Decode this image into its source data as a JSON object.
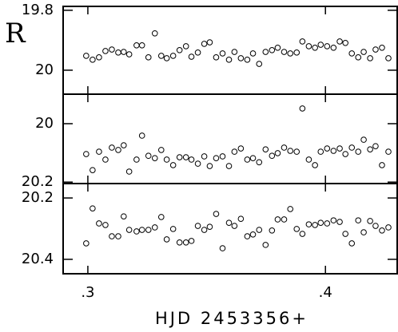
{
  "chart_data": [
    {
      "type": "scatter",
      "y_label": "R",
      "x": [
        0.2993,
        0.302,
        0.3047,
        0.3074,
        0.3101,
        0.3128,
        0.3151,
        0.3174,
        0.3205,
        0.3228,
        0.3255,
        0.3282,
        0.3309,
        0.3332,
        0.3359,
        0.3386,
        0.3413,
        0.3436,
        0.3463,
        0.349,
        0.3513,
        0.354,
        0.3567,
        0.3594,
        0.3617,
        0.3644,
        0.3671,
        0.3695,
        0.3721,
        0.3748,
        0.3775,
        0.3799,
        0.3826,
        0.3852,
        0.3879,
        0.3903,
        0.393,
        0.3956,
        0.398,
        0.4007,
        0.4034,
        0.406,
        0.4084,
        0.4111,
        0.4138,
        0.4161,
        0.4188,
        0.4211,
        0.4238,
        0.4265
      ],
      "values": [
        19.952,
        19.965,
        19.957,
        19.936,
        19.931,
        19.941,
        19.939,
        19.947,
        19.917,
        19.917,
        19.957,
        19.877,
        19.952,
        19.96,
        19.952,
        19.933,
        19.92,
        19.955,
        19.941,
        19.912,
        19.907,
        19.957,
        19.944,
        19.965,
        19.939,
        19.96,
        19.965,
        19.944,
        19.979,
        19.939,
        19.933,
        19.925,
        19.939,
        19.944,
        19.941,
        19.904,
        19.92,
        19.925,
        19.915,
        19.92,
        19.925,
        19.904,
        19.909,
        19.944,
        19.957,
        19.939,
        19.96,
        19.931,
        19.925,
        19.96
      ],
      "xlim": [
        0.2896,
        0.4302
      ],
      "ylim": [
        20.08,
        19.787
      ],
      "yticks": [
        19.8,
        20
      ]
    },
    {
      "type": "scatter",
      "x": [
        0.2993,
        0.302,
        0.3047,
        0.3074,
        0.3101,
        0.3128,
        0.3151,
        0.3174,
        0.3205,
        0.3228,
        0.3255,
        0.3282,
        0.3309,
        0.3332,
        0.3359,
        0.3386,
        0.3413,
        0.3436,
        0.3463,
        0.349,
        0.3513,
        0.354,
        0.3567,
        0.3594,
        0.3617,
        0.3644,
        0.3671,
        0.3695,
        0.3721,
        0.3748,
        0.3775,
        0.3799,
        0.3826,
        0.3852,
        0.3879,
        0.3903,
        0.393,
        0.3956,
        0.398,
        0.4007,
        0.4034,
        0.406,
        0.4084,
        0.4111,
        0.4138,
        0.4161,
        0.4188,
        0.4211,
        0.4238,
        0.4265
      ],
      "values": [
        20.104,
        20.159,
        20.096,
        20.123,
        20.082,
        20.09,
        20.074,
        20.164,
        20.123,
        20.041,
        20.11,
        20.118,
        20.09,
        20.123,
        20.142,
        20.115,
        20.115,
        20.123,
        20.137,
        20.112,
        20.145,
        20.118,
        20.112,
        20.145,
        20.096,
        20.085,
        20.123,
        20.118,
        20.132,
        20.088,
        20.11,
        20.101,
        20.082,
        20.093,
        20.096,
        19.948,
        20.123,
        20.142,
        20.096,
        20.085,
        20.093,
        20.085,
        20.104,
        20.082,
        20.096,
        20.055,
        20.088,
        20.077,
        20.142,
        20.096
      ],
      "xlim": [
        0.2896,
        0.4302
      ],
      "ylim": [
        20.205,
        19.899
      ],
      "yticks": [
        20,
        20.2
      ]
    },
    {
      "type": "scatter",
      "x_label": "HJD 2453356+",
      "x": [
        0.2993,
        0.302,
        0.3047,
        0.3074,
        0.3101,
        0.3128,
        0.3151,
        0.3174,
        0.3205,
        0.3228,
        0.3255,
        0.3282,
        0.3309,
        0.3332,
        0.3359,
        0.3386,
        0.3413,
        0.3436,
        0.3463,
        0.349,
        0.3513,
        0.354,
        0.3567,
        0.3594,
        0.3617,
        0.3644,
        0.3671,
        0.3695,
        0.3721,
        0.3748,
        0.3775,
        0.3799,
        0.3826,
        0.3852,
        0.3879,
        0.3903,
        0.393,
        0.3956,
        0.398,
        0.4007,
        0.4034,
        0.406,
        0.4084,
        0.4111,
        0.4138,
        0.4161,
        0.4188,
        0.4211,
        0.4238,
        0.4265
      ],
      "values": [
        20.348,
        20.234,
        20.283,
        20.288,
        20.325,
        20.325,
        20.26,
        20.304,
        20.309,
        20.304,
        20.304,
        20.296,
        20.262,
        20.335,
        20.301,
        20.345,
        20.345,
        20.34,
        20.291,
        20.304,
        20.294,
        20.252,
        20.364,
        20.281,
        20.291,
        20.268,
        20.325,
        20.319,
        20.304,
        20.353,
        20.306,
        20.27,
        20.27,
        20.236,
        20.301,
        20.317,
        20.286,
        20.288,
        20.281,
        20.283,
        20.273,
        20.278,
        20.317,
        20.348,
        20.273,
        20.312,
        20.275,
        20.291,
        20.306,
        20.296
      ],
      "xlim": [
        0.2896,
        0.4302
      ],
      "ylim": [
        20.447,
        20.153
      ],
      "yticks": [
        20.2,
        20.4
      ],
      "xticks": [
        {
          "value": 0.3,
          "label": ".3"
        },
        {
          "value": 0.4,
          "label": ".4"
        }
      ]
    }
  ]
}
